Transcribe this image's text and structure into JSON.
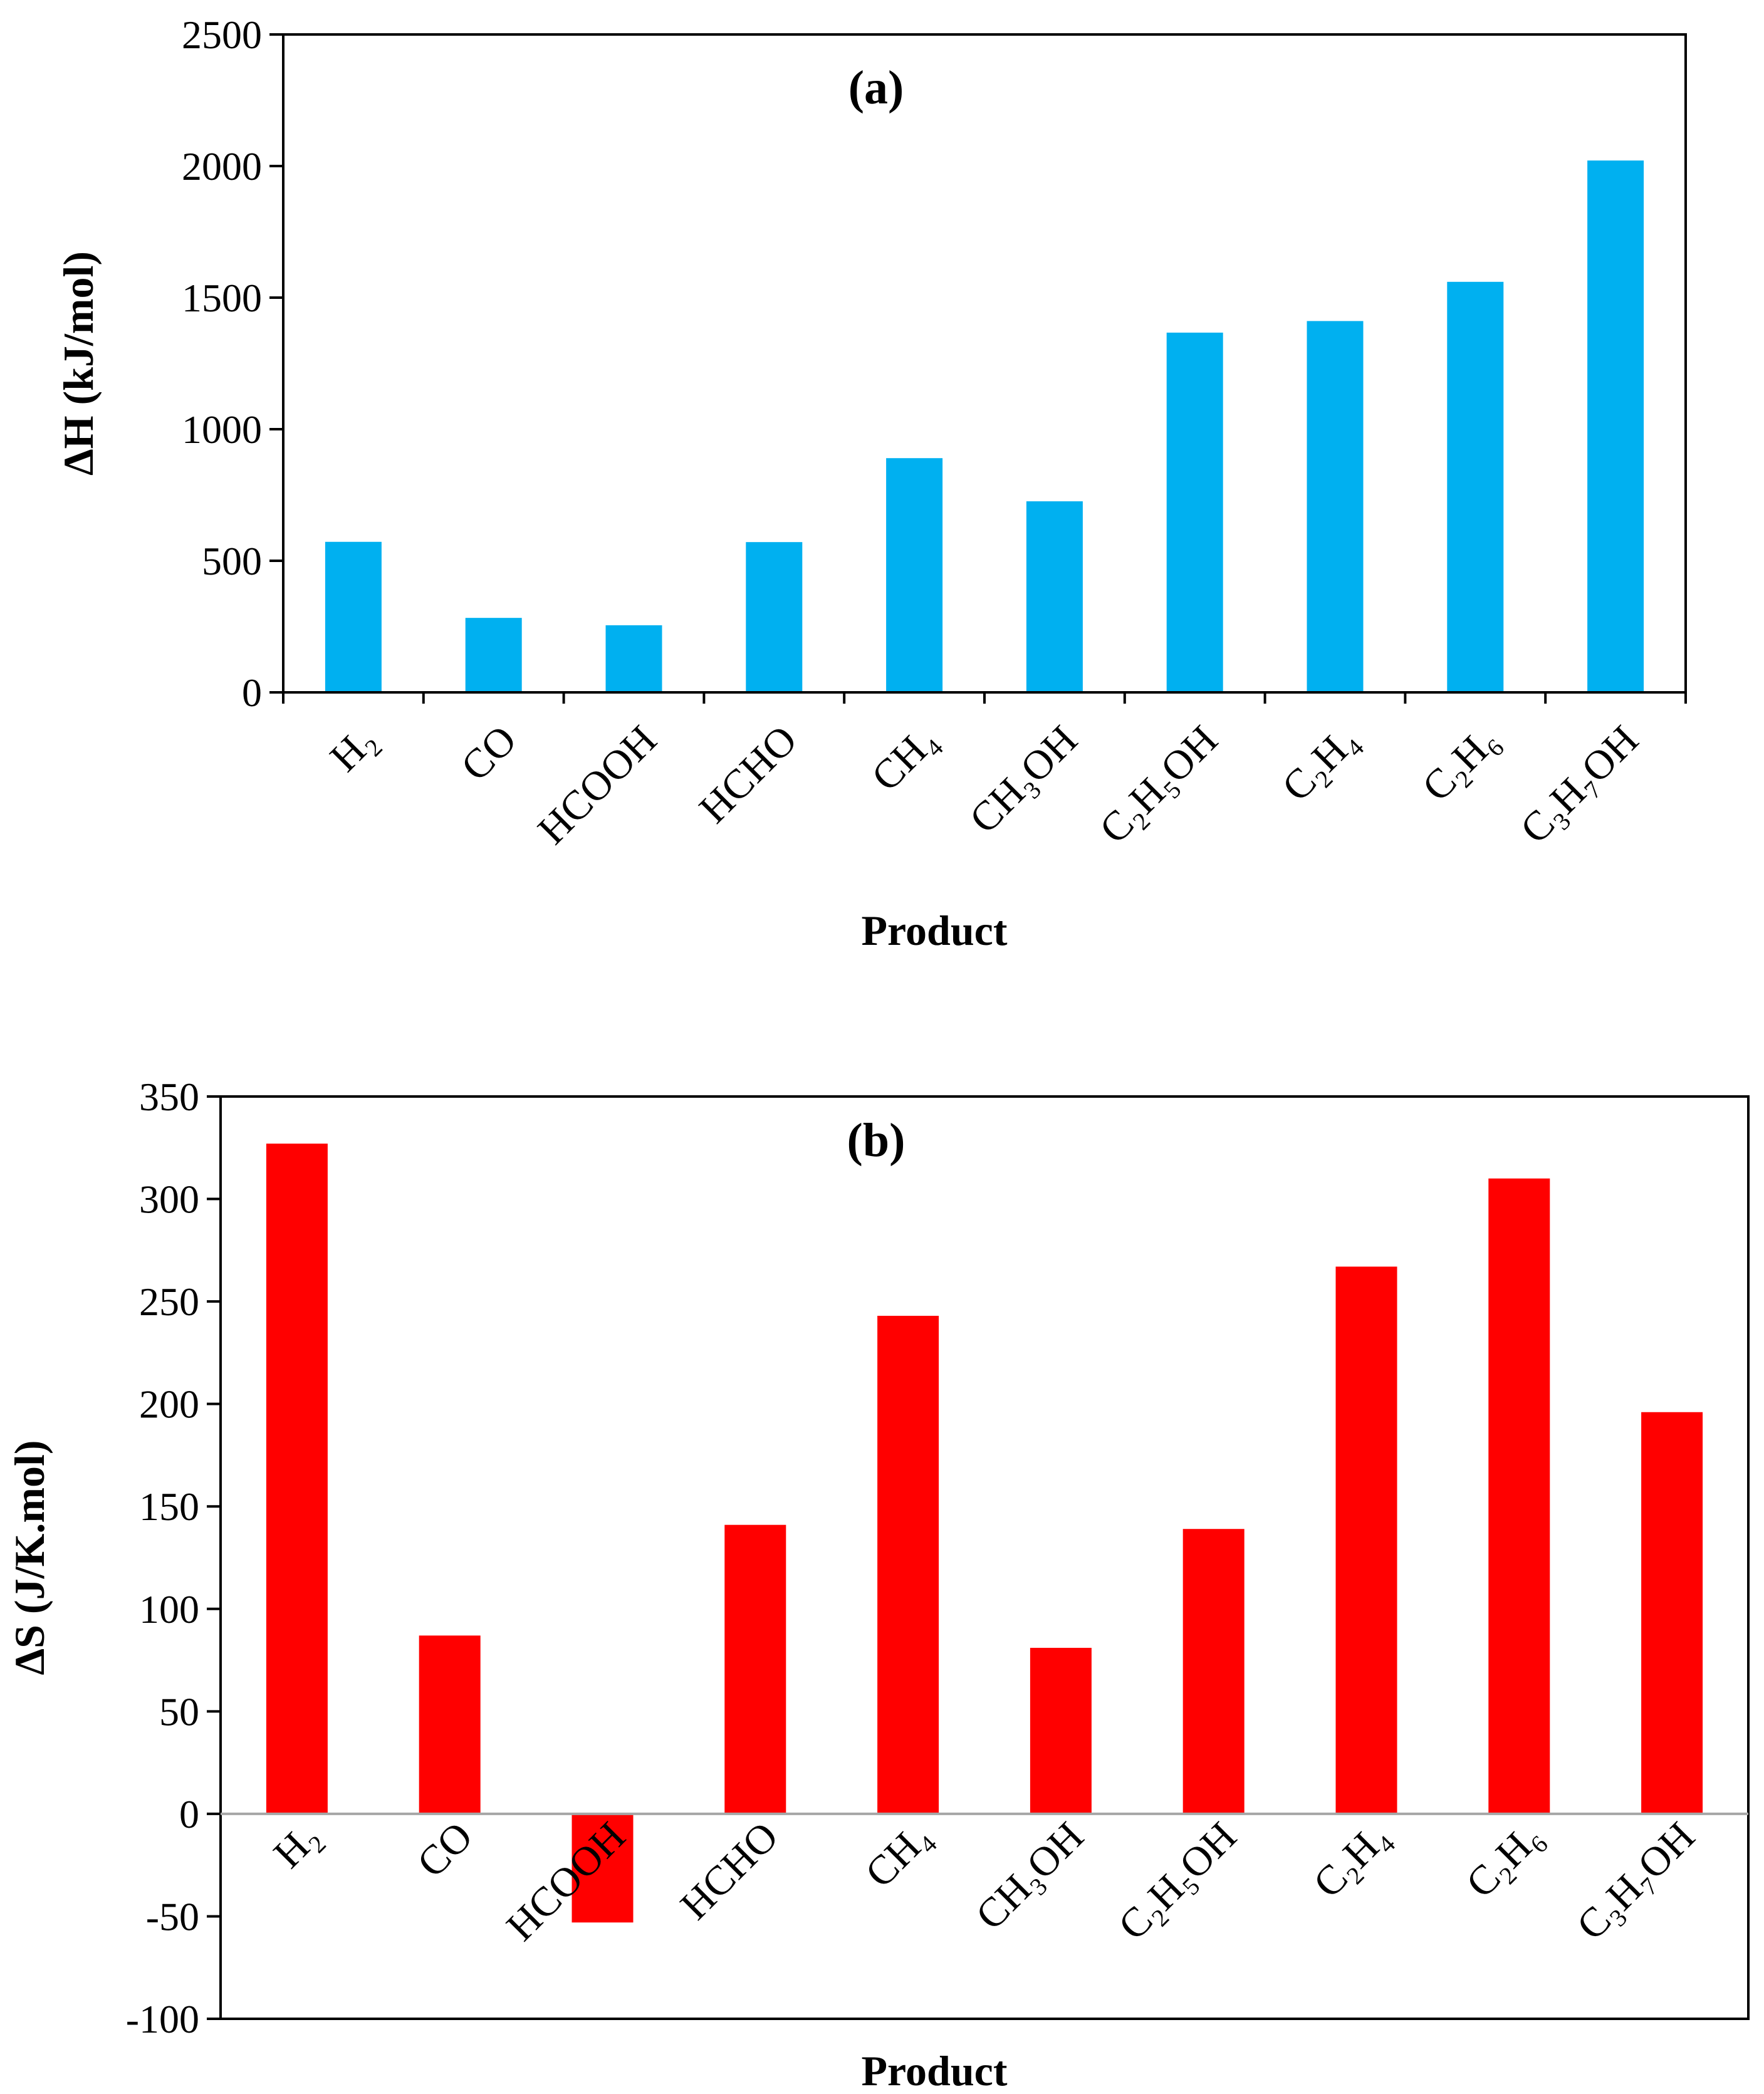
{
  "chart_data": [
    {
      "type": "bar",
      "panel_label": "(a)",
      "title": "",
      "xlabel": "Product",
      "ylabel": "ΔH (kJ/mol)",
      "ylim": [
        0,
        2500
      ],
      "yticks": [
        0,
        500,
        1000,
        1500,
        2000,
        2500
      ],
      "color": "#00B0F0",
      "categories": [
        "H₂",
        "CO",
        "HCOOH",
        "HCHO",
        "CH₄",
        "CH₃OH",
        "C₂H₅OH",
        "C₂H₄",
        "C₂H₆",
        "C₃H₇OH"
      ],
      "values": [
        572,
        283,
        255,
        571,
        890,
        726,
        1367,
        1411,
        1560,
        2021
      ],
      "grid": false
    },
    {
      "type": "bar",
      "panel_label": "(b)",
      "title": "",
      "xlabel": "Product",
      "ylabel": "ΔS (J/K.mol)",
      "ylim": [
        -100,
        350
      ],
      "yticks": [
        -100,
        -50,
        0,
        50,
        100,
        150,
        200,
        250,
        300,
        350
      ],
      "color": "#FF0000",
      "categories": [
        "H₂",
        "CO",
        "HCOOH",
        "HCHO",
        "CH₄",
        "CH₃OH",
        "C₂H₅OH",
        "C₂H₄",
        "C₂H₆",
        "C₃H₇OH"
      ],
      "values": [
        327,
        87,
        -53,
        141,
        243,
        81,
        139,
        267,
        310,
        196
      ],
      "grid": false
    }
  ]
}
